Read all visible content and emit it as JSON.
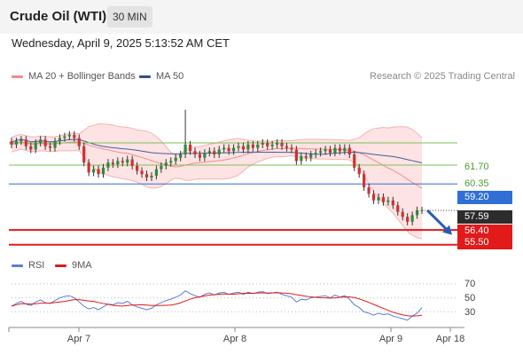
{
  "header": {
    "title": "Crude Oil (WTI)",
    "timeframe": "30 MIN"
  },
  "date_line": "Wednesday, April 9, 2025 5:13:52 AM CET",
  "credit": "Research © 2025 Trading Central",
  "legend_top": [
    {
      "label": "MA 20 + Bollinger Bands",
      "color": "#f08c8c"
    },
    {
      "label": "MA 50",
      "color": "#2f4f8f"
    }
  ],
  "legend_bottom": [
    {
      "label": "RSI",
      "color": "#5b7fd6"
    },
    {
      "label": "9MA",
      "color": "#e11a1a"
    }
  ],
  "chart_data": {
    "type": "candlestick",
    "price_ylim": [
      55.0,
      65.0
    ],
    "levels": [
      {
        "label": "61.70",
        "value": 61.7,
        "kind": "resistance",
        "color": "#7cc05a"
      },
      {
        "label": "60.35",
        "value": 60.35,
        "kind": "resistance",
        "color": "#7cc05a"
      },
      {
        "label": "59.20",
        "value": 59.2,
        "kind": "pivot",
        "color": "#2f6fd6"
      },
      {
        "label": "57.59",
        "value": 57.59,
        "kind": "last-price",
        "color": "#2c2c2c"
      },
      {
        "label": "56.40",
        "value": 56.4,
        "kind": "support",
        "color": "#e11a1a"
      },
      {
        "label": "55.50",
        "value": 55.5,
        "kind": "support",
        "color": "#e11a1a"
      }
    ],
    "x_ticks": [
      "Apr 7",
      "Apr 8",
      "Apr 9",
      "Apr 18"
    ],
    "rsi_ticks": [
      "70",
      "50",
      "30"
    ],
    "rsi_ylim": [
      10,
      80
    ],
    "close": [
      61.6,
      61.8,
      61.9,
      61.5,
      61.3,
      61.7,
      61.9,
      61.5,
      61.4,
      61.8,
      62.0,
      62.1,
      62.2,
      62.0,
      61.5,
      60.5,
      59.9,
      60.1,
      59.8,
      60.2,
      60.5,
      60.4,
      60.6,
      60.5,
      60.7,
      60.3,
      60.0,
      59.8,
      59.6,
      59.7,
      60.1,
      60.3,
      60.5,
      60.6,
      60.8,
      61.0,
      61.6,
      61.2,
      61.0,
      60.8,
      61.1,
      61.2,
      61.0,
      61.3,
      61.4,
      61.2,
      61.4,
      61.5,
      61.3,
      61.6,
      61.4,
      61.6,
      61.7,
      61.5,
      61.6,
      61.7,
      61.5,
      61.4,
      61.3,
      60.6,
      60.9,
      60.8,
      61.0,
      61.1,
      61.2,
      61.3,
      61.1,
      61.4,
      61.2,
      61.4,
      61.0,
      60.2,
      59.8,
      59.0,
      58.6,
      58.2,
      58.4,
      58.1,
      58.2,
      57.9,
      57.5,
      57.2,
      56.9,
      57.3,
      57.6,
      57.6
    ],
    "rsi": [
      38,
      42,
      45,
      41,
      39,
      44,
      47,
      43,
      42,
      46,
      50,
      52,
      53,
      50,
      44,
      38,
      34,
      36,
      33,
      37,
      41,
      40,
      43,
      42,
      45,
      40,
      37,
      35,
      33,
      35,
      40,
      43,
      46,
      48,
      51,
      54,
      60,
      56,
      53,
      51,
      55,
      57,
      54,
      57,
      58,
      55,
      57,
      58,
      55,
      58,
      56,
      58,
      59,
      56,
      57,
      58,
      55,
      53,
      51,
      44,
      48,
      47,
      50,
      51,
      52,
      53,
      50,
      54,
      51,
      53,
      48,
      40,
      36,
      30,
      28,
      25,
      28,
      26,
      27,
      24,
      22,
      20,
      18,
      24,
      28,
      36
    ]
  }
}
